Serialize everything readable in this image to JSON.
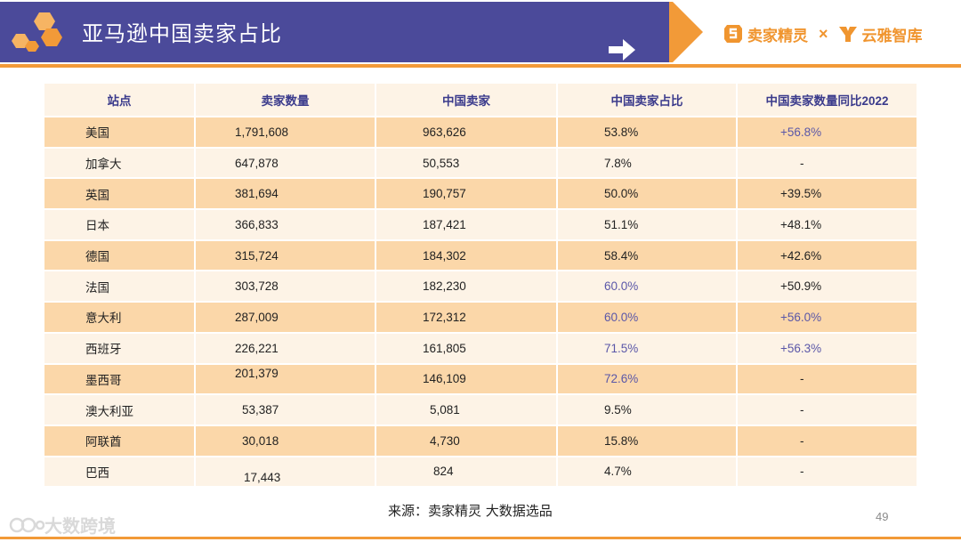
{
  "header": {
    "title": "亚马逊中国卖家占比",
    "brand_left": "卖家精灵",
    "times": "×",
    "brand_right": "云雅智库"
  },
  "table": {
    "columns": [
      "站点",
      "卖家数量",
      "中国卖家",
      "中国卖家占比",
      "中国卖家数量同比2022"
    ],
    "rows": [
      {
        "site": "美国",
        "sellers": "1,791,608",
        "china": "963,626",
        "share": "53.8%",
        "yoy": "+56.8%"
      },
      {
        "site": "加拿大",
        "sellers": "647,878",
        "china": "50,553",
        "share": "7.8%",
        "yoy": "-"
      },
      {
        "site": "英国",
        "sellers": "381,694",
        "china": "190,757",
        "share": "50.0%",
        "yoy": "+39.5%"
      },
      {
        "site": "日本",
        "sellers": "366,833",
        "china": "187,421",
        "share": "51.1%",
        "yoy": "+48.1%"
      },
      {
        "site": "德国",
        "sellers": "315,724",
        "china": "184,302",
        "share": "58.4%",
        "yoy": "+42.6%"
      },
      {
        "site": "法国",
        "sellers": "303,728",
        "china": "182,230",
        "share": "60.0%",
        "yoy": "+50.9%"
      },
      {
        "site": "意大利",
        "sellers": "287,009",
        "china": "172,312",
        "share": "60.0%",
        "yoy": "+56.0%"
      },
      {
        "site": "西班牙",
        "sellers": "226,221",
        "china": "161,805",
        "share": "71.5%",
        "yoy": "+56.3%"
      },
      {
        "site": "墨西哥",
        "sellers": "201,379",
        "china": "146,109",
        "share": "72.6%",
        "yoy": "-"
      },
      {
        "site": "澳大利亚",
        "sellers": "53,387",
        "china": "5,081",
        "share": "9.5%",
        "yoy": "-"
      },
      {
        "site": "阿联酋",
        "sellers": "30,018",
        "china": "4,730",
        "share": "15.8%",
        "yoy": "-"
      },
      {
        "site": "巴西",
        "sellers": "17,443",
        "china": "824",
        "share": "4.7%",
        "yoy": "-"
      }
    ]
  },
  "footer": {
    "source": "来源：卖家精灵 大数据选品",
    "page_number": "49",
    "watermark": "大数跨境"
  },
  "colors": {
    "title_band": "#4b4a9a",
    "accent_orange": "#f29a38",
    "row_dark": "#fbd7a9",
    "row_light": "#fdf3e6",
    "header_text": "#3b3b8c",
    "highlight_text": "#5a57a8"
  }
}
